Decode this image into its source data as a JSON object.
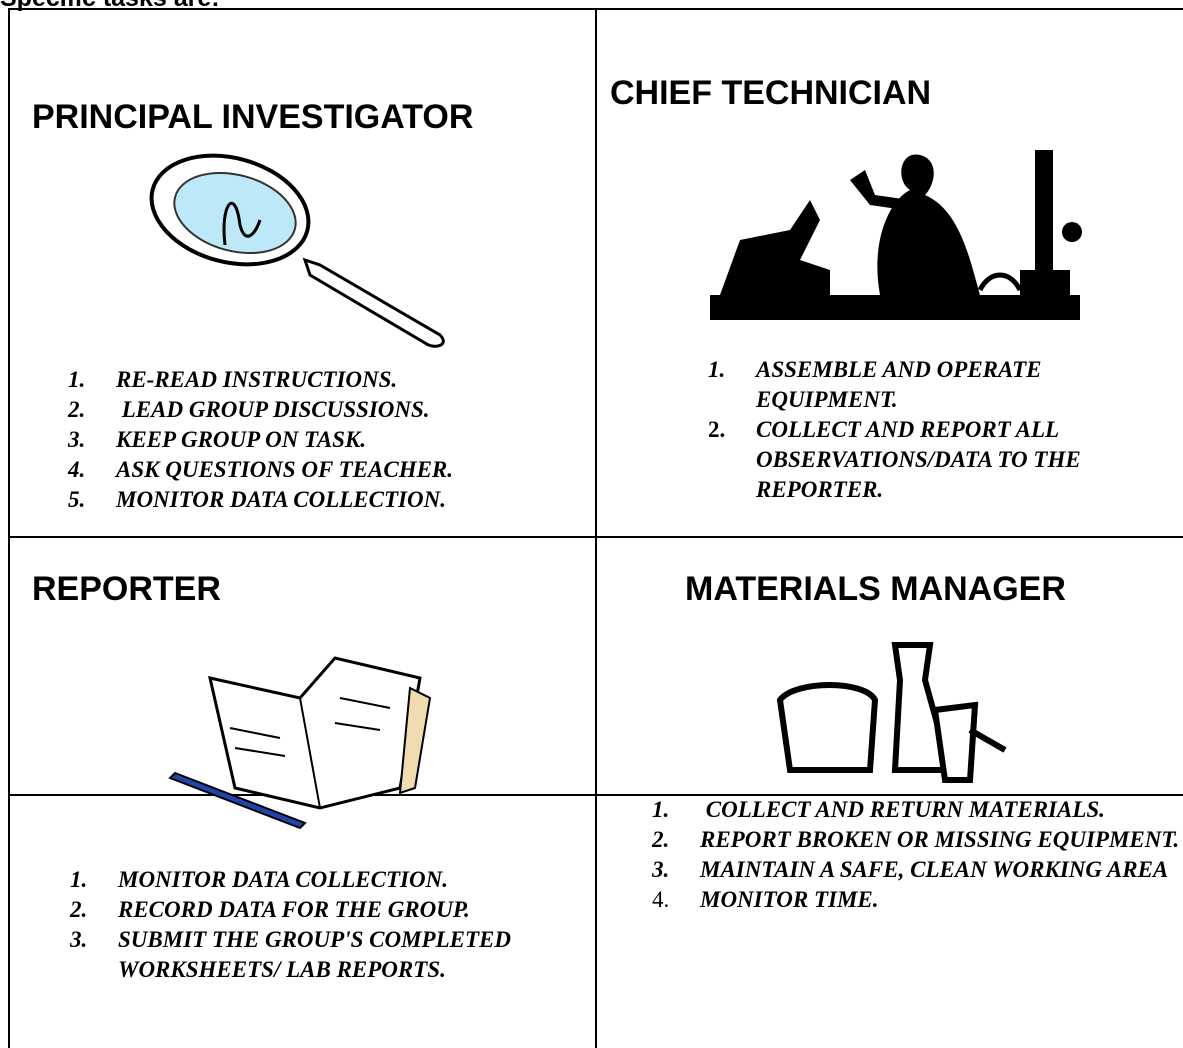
{
  "header": {
    "title": "Specific tasks are:"
  },
  "cells": [
    {
      "title": "PRINCIPAL INVESTIGATOR",
      "items": [
        {
          "number": "1.",
          "text": "RE-READ INSTRUCTIONS."
        },
        {
          "number": "2.",
          "text": " LEAD GROUP DISCUSSIONS."
        },
        {
          "number": "3.",
          "text": "KEEP GROUP ON TASK."
        },
        {
          "number": "4.",
          "text": "ASK QUESTIONS OF TEACHER."
        },
        {
          "number": "5.",
          "text": "MONITOR DATA COLLECTION."
        }
      ]
    },
    {
      "title": "CHIEF TECHNICIAN",
      "items": [
        {
          "number": "1.",
          "text": "ASSEMBLE AND OPERATE EQUIPMENT."
        },
        {
          "number": "2.",
          "text": "COLLECT AND REPORT ALL OBSERVATIONS/DATA TO THE REPORTER."
        }
      ]
    },
    {
      "title": "REPORTER",
      "items": [
        {
          "number": "1.",
          "text": "MONITOR DATA COLLECTION."
        },
        {
          "number": "2.",
          "text": "RECORD DATA FOR THE GROUP."
        },
        {
          "number": "3.",
          "text": "SUBMIT THE GROUP'S COMPLETED WORKSHEETS/ LAB REPORTS."
        }
      ]
    },
    {
      "title": "MATERIALS MANAGER",
      "items": [
        {
          "number": "1.",
          "text": " COLLECT AND RETURN MATERIALS."
        },
        {
          "number": "2.",
          "text": "REPORT BROKEN OR MISSING EQUIPMENT."
        },
        {
          "number": "3.",
          "text": "MAINTAIN A SAFE, CLEAN WORKING AREA"
        },
        {
          "number": "4.",
          "text": "MONITOR TIME."
        }
      ]
    }
  ]
}
